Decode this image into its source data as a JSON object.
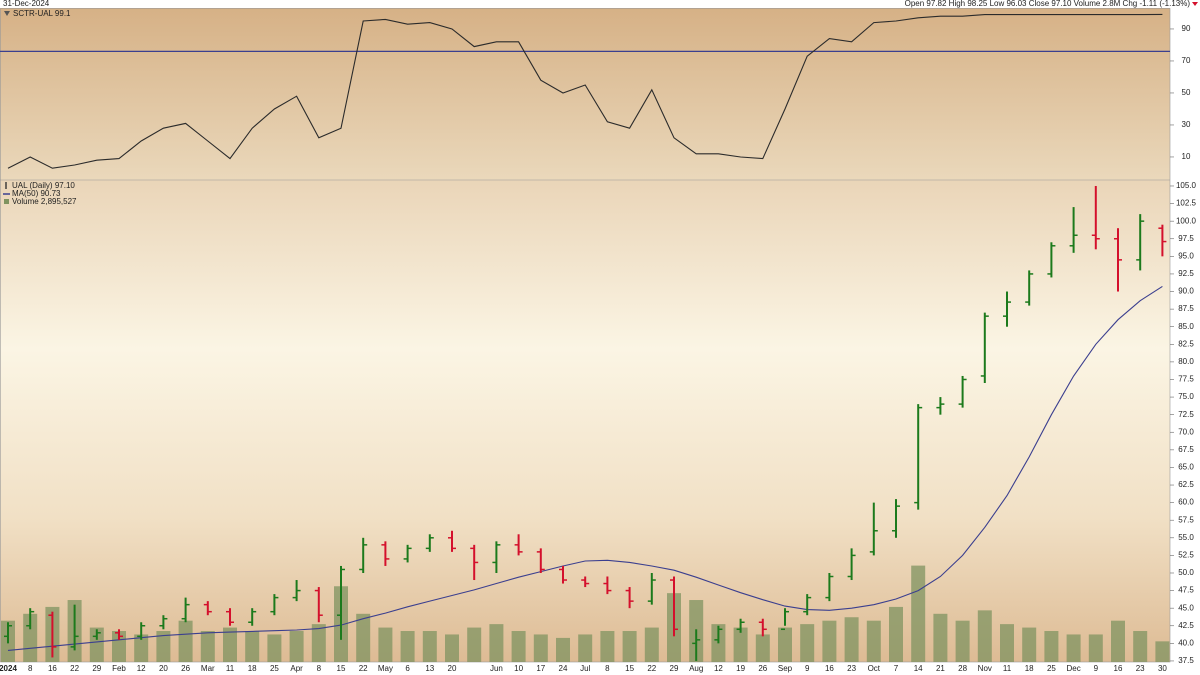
{
  "chart_data": [
    {
      "type": "line",
      "title": "SCTR-UAL 99.1",
      "date": "31-Dec-2024",
      "quote": "Open 97.82  High 98.25  Low 96.03  Close 97.10  Volume 2.8M  Chg -1.11 (-1.13%)",
      "color": "#2b2b2b",
      "reference_line": 76,
      "reference_color": "#3b3f8f",
      "ylim": [
        -4.4,
        103.1
      ],
      "yticks": [
        10,
        30,
        50,
        70,
        90
      ],
      "values": [
        3,
        10,
        3,
        5,
        8,
        9,
        20,
        28,
        31,
        20,
        9,
        28,
        40,
        48,
        22,
        28,
        95,
        96,
        93,
        94,
        90,
        79,
        82,
        82,
        58,
        50,
        55,
        32,
        28,
        52,
        22,
        12,
        12,
        10,
        9,
        40,
        73,
        84,
        82,
        94,
        95,
        97,
        98,
        98,
        99,
        99,
        99,
        99,
        99,
        99,
        99,
        99,
        99.1
      ]
    },
    {
      "type": "ohlc",
      "title": "UAL (Daily) 97.10",
      "up_color": "#1c7a1c",
      "down_color": "#d4102c",
      "categories": [
        "2024",
        "8",
        "16",
        "22",
        "29",
        "Feb",
        "12",
        "20",
        "26",
        "Mar",
        "11",
        "18",
        "25",
        "Apr",
        "8",
        "15",
        "22",
        "May",
        "6",
        "13",
        "20",
        null,
        "Jun",
        "10",
        "17",
        "24",
        "Jul",
        "8",
        "15",
        "22",
        "29",
        "Aug",
        "12",
        "19",
        "26",
        "Sep",
        "9",
        "16",
        "23",
        "Oct",
        "7",
        "14",
        "21",
        "28",
        "Nov",
        "11",
        "18",
        "25",
        "Dec",
        "9",
        "16",
        "23",
        "30"
      ],
      "open": [
        41,
        42.5,
        44,
        39.5,
        41,
        41.5,
        41,
        42.5,
        43.5,
        45.5,
        44.5,
        43,
        44.5,
        46.5,
        47.5,
        44,
        50.5,
        54,
        52,
        53.5,
        55,
        53.5,
        51.5,
        54,
        53,
        50.5,
        49,
        48.5,
        47.5,
        46,
        49,
        40,
        40.5,
        42,
        43,
        42,
        44.5,
        46.5,
        49.5,
        53,
        56,
        60,
        73.5,
        74,
        78,
        86.5,
        88.5,
        92.5,
        96.5,
        98,
        97.5,
        94.5,
        99
      ],
      "high": [
        43,
        45,
        44.5,
        45.5,
        42,
        42,
        43,
        44,
        46.5,
        46,
        45,
        45,
        47,
        49,
        48,
        51,
        55,
        54.5,
        54,
        55.5,
        56,
        54,
        54.5,
        55.5,
        53.5,
        51,
        49.5,
        49.5,
        48,
        50,
        49.5,
        42,
        42.5,
        43.5,
        43.5,
        45,
        47,
        50,
        53.5,
        60,
        60.5,
        74,
        75,
        78,
        87,
        90,
        93,
        97,
        102,
        105,
        99,
        101,
        99.5
      ],
      "low": [
        40,
        42,
        38,
        39,
        40.5,
        40.5,
        40.5,
        42,
        43,
        44,
        42.5,
        42.5,
        44,
        46,
        43,
        40.5,
        50,
        51,
        51.5,
        53,
        53,
        49,
        50,
        52.5,
        50,
        48.5,
        48,
        47,
        45,
        45.5,
        41,
        37.5,
        40,
        41.5,
        41,
        42.5,
        44,
        46,
        49,
        52.5,
        55,
        59,
        72.5,
        73.5,
        77,
        85,
        88,
        92,
        95.5,
        96,
        90,
        93,
        95
      ],
      "close": [
        42.5,
        44.5,
        39.5,
        41,
        41.5,
        41,
        42.5,
        43.5,
        45.5,
        44.5,
        43,
        44.5,
        46.5,
        47.5,
        44,
        50.5,
        54,
        52,
        53.5,
        55,
        53.5,
        51.5,
        54,
        53,
        50.5,
        49,
        48.5,
        47.5,
        46,
        49,
        42,
        40.5,
        42,
        43,
        42,
        44.5,
        46.5,
        49.5,
        52.5,
        56,
        59.5,
        73.5,
        74,
        77.5,
        86.5,
        88.5,
        92.5,
        96.5,
        98,
        97.5,
        94.5,
        100,
        97.1
      ],
      "overlays": [
        {
          "name": "MA(50) 90.73",
          "color": "#3b3f8f",
          "values": [
            39,
            39.3,
            39.6,
            39.9,
            40.2,
            40.5,
            40.8,
            41.1,
            41.3,
            41.5,
            41.6,
            41.7,
            41.8,
            41.9,
            42.1,
            42.6,
            43.5,
            44.3,
            45.2,
            46,
            46.8,
            47.6,
            48.5,
            49.4,
            50.2,
            51,
            51.7,
            51.8,
            51.5,
            51,
            50.4,
            49.4,
            48.3,
            47.2,
            46.2,
            45.3,
            44.8,
            44.7,
            45,
            45.5,
            46.3,
            47.5,
            49.5,
            52.5,
            56.5,
            61,
            66.5,
            72.5,
            78,
            82.5,
            86,
            88.7,
            90.73
          ]
        }
      ],
      "volume": {
        "name": "Volume 2,895,527",
        "color": "#7f9360",
        "ylim": [
          0,
          140
        ],
        "values": [
          12,
          14,
          16,
          18,
          10,
          9,
          8,
          9,
          12,
          9,
          10,
          9,
          8,
          9,
          11,
          22,
          14,
          10,
          9,
          9,
          8,
          10,
          11,
          9,
          8,
          7,
          8,
          9,
          9,
          10,
          20,
          18,
          11,
          10,
          8,
          10,
          11,
          12,
          13,
          12,
          16,
          28,
          14,
          12,
          15,
          11,
          10,
          9,
          8,
          8,
          12,
          9,
          6
        ]
      },
      "ylim": [
        37.35,
        105.85
      ],
      "yticks": [
        37.5,
        {
          "value": 40,
          "label": "40.0"
        },
        42.5,
        {
          "value": 45,
          "label": "45.0"
        },
        47.5,
        {
          "value": 50,
          "label": "50.0"
        },
        52.5,
        {
          "value": 55,
          "label": "55.0"
        },
        57.5,
        {
          "value": 60,
          "label": "60.0"
        },
        62.5,
        {
          "value": 65,
          "label": "65.0"
        },
        67.5,
        {
          "value": 70,
          "label": "70.0"
        },
        72.5,
        {
          "value": 75,
          "label": "75.0"
        },
        77.5,
        {
          "value": 80,
          "label": "80.0"
        },
        82.5,
        {
          "value": 85,
          "label": "85.0"
        },
        87.5,
        {
          "value": 90,
          "label": "90.0"
        },
        92.5,
        {
          "value": 95,
          "label": "95.0"
        },
        97.5,
        {
          "value": 100,
          "label": "100.0"
        },
        102.5,
        {
          "value": 105,
          "label": "105.0"
        }
      ]
    }
  ]
}
